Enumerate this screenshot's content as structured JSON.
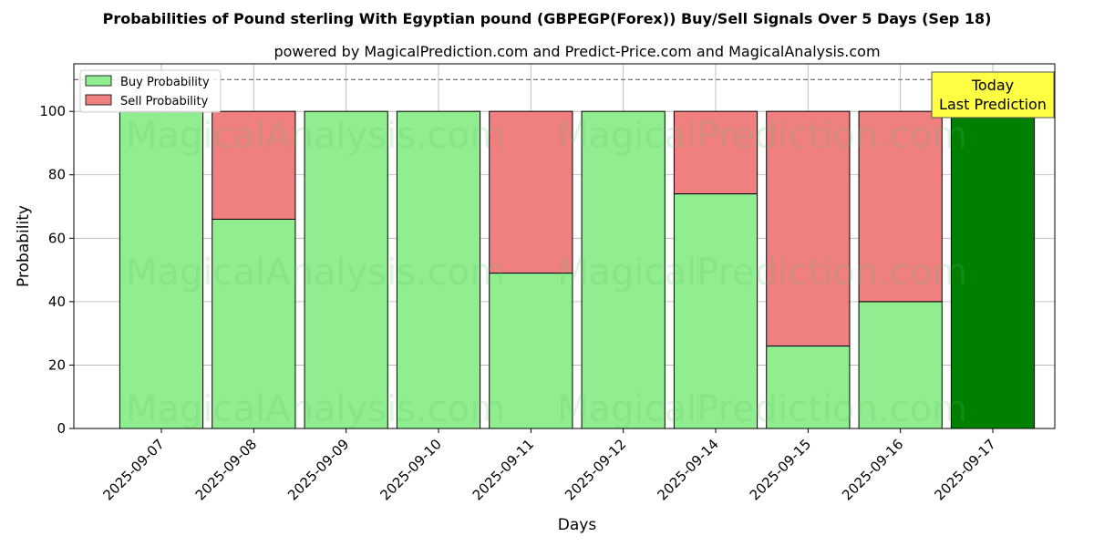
{
  "chart_data": {
    "type": "bar",
    "stacked": true,
    "title": "Probabilities of Pound sterling With Egyptian pound (GBPEGP(Forex)) Buy/Sell Signals Over 5 Days (Sep 18)",
    "subtitle": "powered by MagicalPrediction.com and Predict-Price.com and MagicalAnalysis.com",
    "xlabel": "Days",
    "ylabel": "Probability",
    "ylim": [
      0,
      115
    ],
    "yticks": [
      0,
      20,
      40,
      60,
      80,
      100
    ],
    "reference_line": 110,
    "grid": true,
    "legend_position": "top-left",
    "categories": [
      "2025-09-07",
      "2025-09-08",
      "2025-09-09",
      "2025-09-10",
      "2025-09-11",
      "2025-09-12",
      "2025-09-14",
      "2025-09-15",
      "2025-09-16",
      "2025-09-17"
    ],
    "series": [
      {
        "name": "Buy Probability",
        "color": "#90ee90",
        "values": [
          100,
          66,
          100,
          100,
          49,
          100,
          74,
          26,
          40,
          100
        ]
      },
      {
        "name": "Sell Probability",
        "color": "#f08080",
        "values": [
          0,
          34,
          0,
          0,
          51,
          0,
          26,
          74,
          60,
          0
        ]
      }
    ],
    "highlight": {
      "category": "2025-09-17",
      "color": "#008000"
    },
    "annotation": {
      "line1": "Today",
      "line2": "Last Prediction",
      "color": "#ffff44"
    },
    "watermarks": [
      "MagicalAnalysis.com",
      "MagicalPrediction.com"
    ]
  }
}
